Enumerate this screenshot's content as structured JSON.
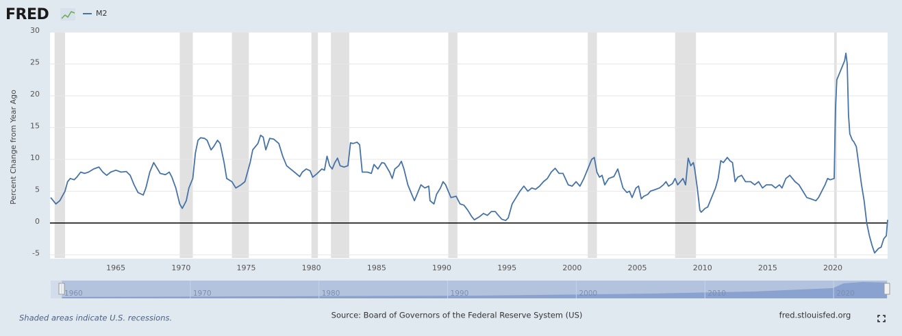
{
  "chart_data": {
    "type": "line",
    "logo": "FRED",
    "y_label": "Percent Change from Year Ago",
    "note": "Shaded areas indicate U.S. recessions.",
    "source": "Source: Board of Governors of the Federal Reserve System (US)",
    "url": "fred.stlouisfed.org",
    "xlim": [
      1960,
      2024.2
    ],
    "ylim": [
      -5.5,
      30
    ],
    "xticks": [
      1965,
      1970,
      1975,
      1980,
      1985,
      1990,
      1995,
      2000,
      2005,
      2010,
      2015,
      2020
    ],
    "yticks": [
      -5,
      0,
      5,
      10,
      15,
      20,
      25,
      30
    ],
    "grid": true,
    "reference_line": 0,
    "recession_color": "#e1e1e1",
    "recessions": [
      [
        1960.3,
        1961.1
      ],
      [
        1969.9,
        1970.9
      ],
      [
        1973.9,
        1975.2
      ],
      [
        1980.0,
        1980.5
      ],
      [
        1981.5,
        1982.9
      ],
      [
        1990.5,
        1991.2
      ],
      [
        2001.2,
        2001.9
      ],
      [
        2007.9,
        2009.5
      ],
      [
        2020.1,
        2020.3
      ]
    ],
    "navigator": {
      "xticks": [
        1960,
        1970,
        1980,
        1990,
        2000,
        2010,
        2020
      ]
    },
    "x": [
      1960.0,
      1960.4,
      1960.7,
      1961.1,
      1961.3,
      1961.5,
      1961.8,
      1962.0,
      1962.3,
      1962.6,
      1962.9,
      1963.3,
      1963.7,
      1964.0,
      1964.3,
      1964.6,
      1965.0,
      1965.4,
      1965.8,
      1966.1,
      1966.4,
      1966.7,
      1967.1,
      1967.3,
      1967.6,
      1967.9,
      1968.2,
      1968.4,
      1968.8,
      1969.1,
      1969.3,
      1969.6,
      1969.9,
      1970.1,
      1970.4,
      1970.6,
      1970.9,
      1971.1,
      1971.3,
      1971.5,
      1971.8,
      1972.0,
      1972.3,
      1972.5,
      1972.8,
      1973.0,
      1973.3,
      1973.5,
      1973.9,
      1974.2,
      1974.6,
      1974.9,
      1975.3,
      1975.5,
      1975.9,
      1976.1,
      1976.3,
      1976.5,
      1976.8,
      1977.1,
      1977.5,
      1977.8,
      1978.1,
      1978.4,
      1978.7,
      1979.1,
      1979.3,
      1979.6,
      1979.9,
      1980.1,
      1980.4,
      1980.8,
      1981.0,
      1981.2,
      1981.4,
      1981.6,
      1981.8,
      1982.0,
      1982.2,
      1982.5,
      1982.8,
      1983.0,
      1983.2,
      1983.5,
      1983.7,
      1983.9,
      1984.3,
      1984.6,
      1984.8,
      1985.1,
      1985.4,
      1985.6,
      1986.0,
      1986.2,
      1986.4,
      1986.7,
      1986.9,
      1987.1,
      1987.4,
      1987.7,
      1987.9,
      1988.2,
      1988.4,
      1988.7,
      1989.0,
      1989.1,
      1989.4,
      1989.6,
      1989.9,
      1990.1,
      1990.3,
      1990.5,
      1990.7,
      1991.1,
      1991.4,
      1991.7,
      1992.0,
      1992.3,
      1992.5,
      1992.9,
      1993.2,
      1993.5,
      1993.8,
      1994.1,
      1994.3,
      1994.6,
      1994.9,
      1995.1,
      1995.4,
      1995.7,
      1996.0,
      1996.3,
      1996.6,
      1996.9,
      1997.2,
      1997.5,
      1997.8,
      1998.1,
      1998.4,
      1998.7,
      1999.0,
      1999.3,
      1999.7,
      2000.0,
      2000.3,
      2000.6,
      2000.9,
      2001.2,
      2001.5,
      2001.7,
      2001.9,
      2002.1,
      2002.3,
      2002.5,
      2002.8,
      2003.2,
      2003.5,
      2003.7,
      2003.9,
      2004.2,
      2004.4,
      2004.6,
      2004.9,
      2005.1,
      2005.3,
      2005.5,
      2005.8,
      2006.0,
      2006.3,
      2006.7,
      2007.0,
      2007.2,
      2007.4,
      2007.7,
      2007.9,
      2008.1,
      2008.5,
      2008.7,
      2008.9,
      2009.1,
      2009.3,
      2009.4,
      2009.6,
      2009.8,
      2009.9,
      2010.2,
      2010.4,
      2010.7,
      2011.0,
      2011.2,
      2011.4,
      2011.6,
      2011.9,
      2012.1,
      2012.3,
      2012.5,
      2012.7,
      2013.0,
      2013.3,
      2013.7,
      2014.0,
      2014.3,
      2014.6,
      2014.9,
      2015.3,
      2015.6,
      2015.9,
      2016.1,
      2016.4,
      2016.7,
      2017.1,
      2017.4,
      2017.7,
      2018.0,
      2018.3,
      2018.7,
      2018.9,
      2019.1,
      2019.4,
      2019.6,
      2019.8,
      2020.1,
      2020.2,
      2020.3,
      2020.5,
      2020.7,
      2020.9,
      2021.0,
      2021.1,
      2021.2,
      2021.3,
      2021.5,
      2021.6,
      2021.8,
      2022.0,
      2022.2,
      2022.4,
      2022.6,
      2022.8,
      2023.0,
      2023.2,
      2023.5,
      2023.7,
      2023.9,
      2024.1,
      2024.2
    ],
    "series": [
      {
        "name": "M2",
        "color": "#4572a7",
        "values": [
          4,
          3,
          3.5,
          5,
          6.5,
          7,
          6.8,
          7.2,
          8,
          7.8,
          8,
          8.5,
          8.8,
          8,
          7.5,
          8,
          8.3,
          8,
          8.1,
          7.5,
          6,
          4.8,
          4.4,
          5.5,
          8,
          9.5,
          8.5,
          7.8,
          7.6,
          8,
          7.2,
          5.5,
          3,
          2.3,
          3.5,
          5.5,
          7,
          11,
          13,
          13.4,
          13.3,
          13,
          11.5,
          12,
          13,
          12.5,
          9.5,
          7,
          6.5,
          5.5,
          6,
          6.5,
          9.5,
          11.5,
          12.5,
          13.8,
          13.5,
          11.5,
          13.3,
          13.2,
          12.5,
          10.5,
          9,
          8.5,
          8,
          7.3,
          8,
          8.5,
          8.2,
          7.2,
          7.7,
          8.5,
          8.3,
          10.5,
          9,
          8.5,
          9.5,
          10.2,
          9,
          8.8,
          9,
          12.6,
          12.5,
          12.7,
          12.3,
          8,
          8,
          7.8,
          9.2,
          8.5,
          9.5,
          9.4,
          8,
          7,
          8.5,
          9,
          9.7,
          8.5,
          6,
          4.5,
          3.5,
          5,
          6,
          5.5,
          5.8,
          3.5,
          3,
          4.5,
          5.5,
          6.5,
          6,
          5,
          4,
          4.2,
          3,
          2.8,
          2,
          1,
          0.5,
          1,
          1.5,
          1.2,
          1.8,
          1.8,
          1.3,
          0.6,
          0.4,
          0.8,
          3,
          4,
          5,
          5.8,
          5,
          5.5,
          5.3,
          5.8,
          6.5,
          7,
          8,
          8.6,
          7.8,
          7.8,
          6,
          5.8,
          6.5,
          5.8,
          7,
          8.5,
          10,
          10.3,
          8,
          7.2,
          7.5,
          6,
          7,
          7.3,
          8.5,
          7,
          5.5,
          4.8,
          5,
          4,
          5.5,
          5.8,
          3.8,
          4.2,
          4.5,
          5,
          5.2,
          5.5,
          6,
          6.5,
          5.8,
          6.2,
          7,
          6,
          7,
          6,
          10.2,
          9,
          9.5,
          8.5,
          5.5,
          2,
          1.7,
          2.3,
          2.5,
          4,
          5.5,
          7,
          9.8,
          9.5,
          10.3,
          9.8,
          9.5,
          6.5,
          7.2,
          7.5,
          6.5,
          6.5,
          6,
          6.5,
          5.5,
          6,
          6,
          5.5,
          6,
          5.5,
          7,
          7.5,
          6.5,
          6,
          5,
          4,
          3.8,
          3.5,
          4,
          4.8,
          6,
          7,
          6.8,
          7,
          18,
          22.5,
          23.5,
          24.5,
          25.5,
          26.7,
          25,
          17,
          14,
          13,
          12.8,
          12,
          9,
          6,
          3.5,
          0,
          -2,
          -3.5,
          -4.7,
          -4,
          -3.8,
          -2.5,
          -2,
          0.5
        ]
      }
    ]
  }
}
